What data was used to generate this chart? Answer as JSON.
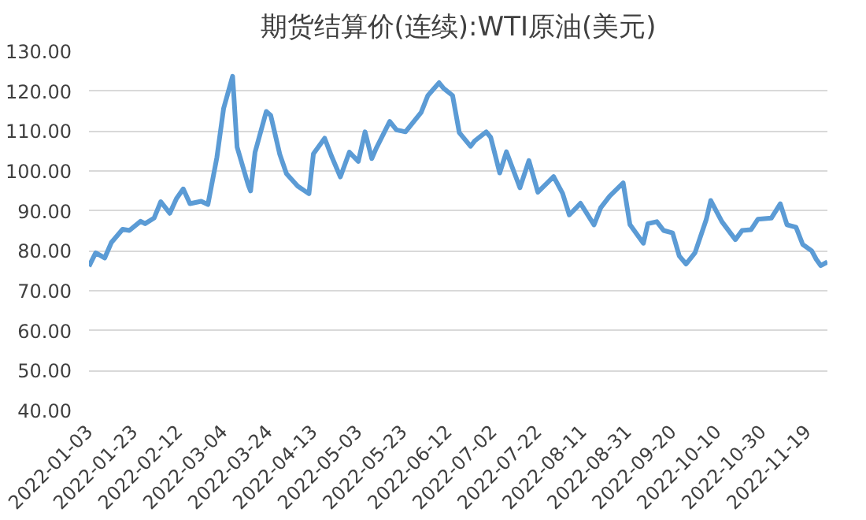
{
  "chart_data": {
    "type": "line",
    "title": "期货结算价(连续):WTI原油(美元)",
    "x": [
      "2022-01-03",
      "2022-01-06",
      "2022-01-10",
      "2022-01-13",
      "2022-01-18",
      "2022-01-21",
      "2022-01-26",
      "2022-01-28",
      "2022-02-01",
      "2022-02-04",
      "2022-02-08",
      "2022-02-11",
      "2022-02-14",
      "2022-02-17",
      "2022-02-22",
      "2022-02-25",
      "2022-03-01",
      "2022-03-04",
      "2022-03-08",
      "2022-03-10",
      "2022-03-15",
      "2022-03-16",
      "2022-03-18",
      "2022-03-23",
      "2022-03-25",
      "2022-03-29",
      "2022-04-01",
      "2022-04-06",
      "2022-04-11",
      "2022-04-13",
      "2022-04-18",
      "2022-04-21",
      "2022-04-25",
      "2022-04-29",
      "2022-05-03",
      "2022-05-06",
      "2022-05-09",
      "2022-05-11",
      "2022-05-17",
      "2022-05-20",
      "2022-05-24",
      "2022-05-31",
      "2022-06-03",
      "2022-06-08",
      "2022-06-10",
      "2022-06-14",
      "2022-06-17",
      "2022-06-22",
      "2022-06-24",
      "2022-06-29",
      "2022-07-01",
      "2022-07-05",
      "2022-07-08",
      "2022-07-14",
      "2022-07-18",
      "2022-07-22",
      "2022-07-26",
      "2022-07-29",
      "2022-08-02",
      "2022-08-05",
      "2022-08-10",
      "2022-08-16",
      "2022-08-19",
      "2022-08-23",
      "2022-08-29",
      "2022-09-01",
      "2022-09-07",
      "2022-09-09",
      "2022-09-13",
      "2022-09-16",
      "2022-09-20",
      "2022-09-23",
      "2022-09-26",
      "2022-09-30",
      "2022-10-05",
      "2022-10-07",
      "2022-10-12",
      "2022-10-18",
      "2022-10-21",
      "2022-10-25",
      "2022-10-28",
      "2022-11-03",
      "2022-11-07",
      "2022-11-10",
      "2022-11-14",
      "2022-11-17",
      "2022-11-21",
      "2022-11-23",
      "2022-11-25",
      "2022-11-28"
    ],
    "values": [
      76.1,
      79.5,
      78.2,
      82.1,
      85.4,
      85.1,
      87.4,
      86.8,
      88.2,
      92.3,
      89.4,
      93.1,
      95.5,
      91.8,
      92.4,
      91.6,
      103.4,
      115.7,
      123.7,
      106.0,
      96.4,
      95.0,
      104.7,
      114.9,
      113.9,
      104.2,
      99.3,
      96.2,
      94.3,
      104.3,
      108.2,
      103.8,
      98.5,
      104.7,
      102.4,
      109.8,
      103.1,
      105.7,
      112.4,
      110.3,
      109.8,
      114.7,
      118.9,
      122.1,
      120.7,
      118.9,
      109.6,
      106.2,
      107.6,
      109.8,
      108.4,
      99.5,
      104.8,
      95.8,
      102.6,
      94.7,
      96.9,
      98.6,
      94.4,
      89.0,
      91.9,
      86.5,
      90.8,
      93.7,
      97.0,
      86.6,
      81.9,
      86.8,
      87.3,
      85.1,
      84.5,
      78.7,
      76.7,
      79.5,
      87.8,
      92.6,
      87.3,
      82.8,
      85.1,
      85.3,
      87.9,
      88.2,
      91.8,
      86.5,
      85.9,
      81.6,
      80.0,
      77.9,
      76.3,
      77.2
    ],
    "color": "#5b9bd5",
    "xlim": [
      "2022-01-03",
      "2022-11-28"
    ],
    "xticks": [
      "2022-01-03",
      "2022-01-23",
      "2022-02-12",
      "2022-03-04",
      "2022-03-24",
      "2022-04-13",
      "2022-05-03",
      "2022-05-23",
      "2022-06-12",
      "2022-07-02",
      "2022-07-22",
      "2022-08-11",
      "2022-08-31",
      "2022-09-20",
      "2022-10-10",
      "2022-10-30",
      "2022-11-19"
    ],
    "ylim": [
      40,
      130
    ],
    "yticks": [
      {
        "value": 40,
        "label": "40.00"
      },
      {
        "value": 50,
        "label": "50.00"
      },
      {
        "value": 60,
        "label": "60.00"
      },
      {
        "value": 70,
        "label": "70.00"
      },
      {
        "value": 80,
        "label": "80.00"
      },
      {
        "value": 90,
        "label": "90.00"
      },
      {
        "value": 100,
        "label": "100.00"
      },
      {
        "value": 110,
        "label": "110.00"
      },
      {
        "value": 120,
        "label": "120.00"
      },
      {
        "value": 130,
        "label": "130.00"
      }
    ],
    "grid": "y",
    "marker": "none",
    "line_style": "solid"
  }
}
